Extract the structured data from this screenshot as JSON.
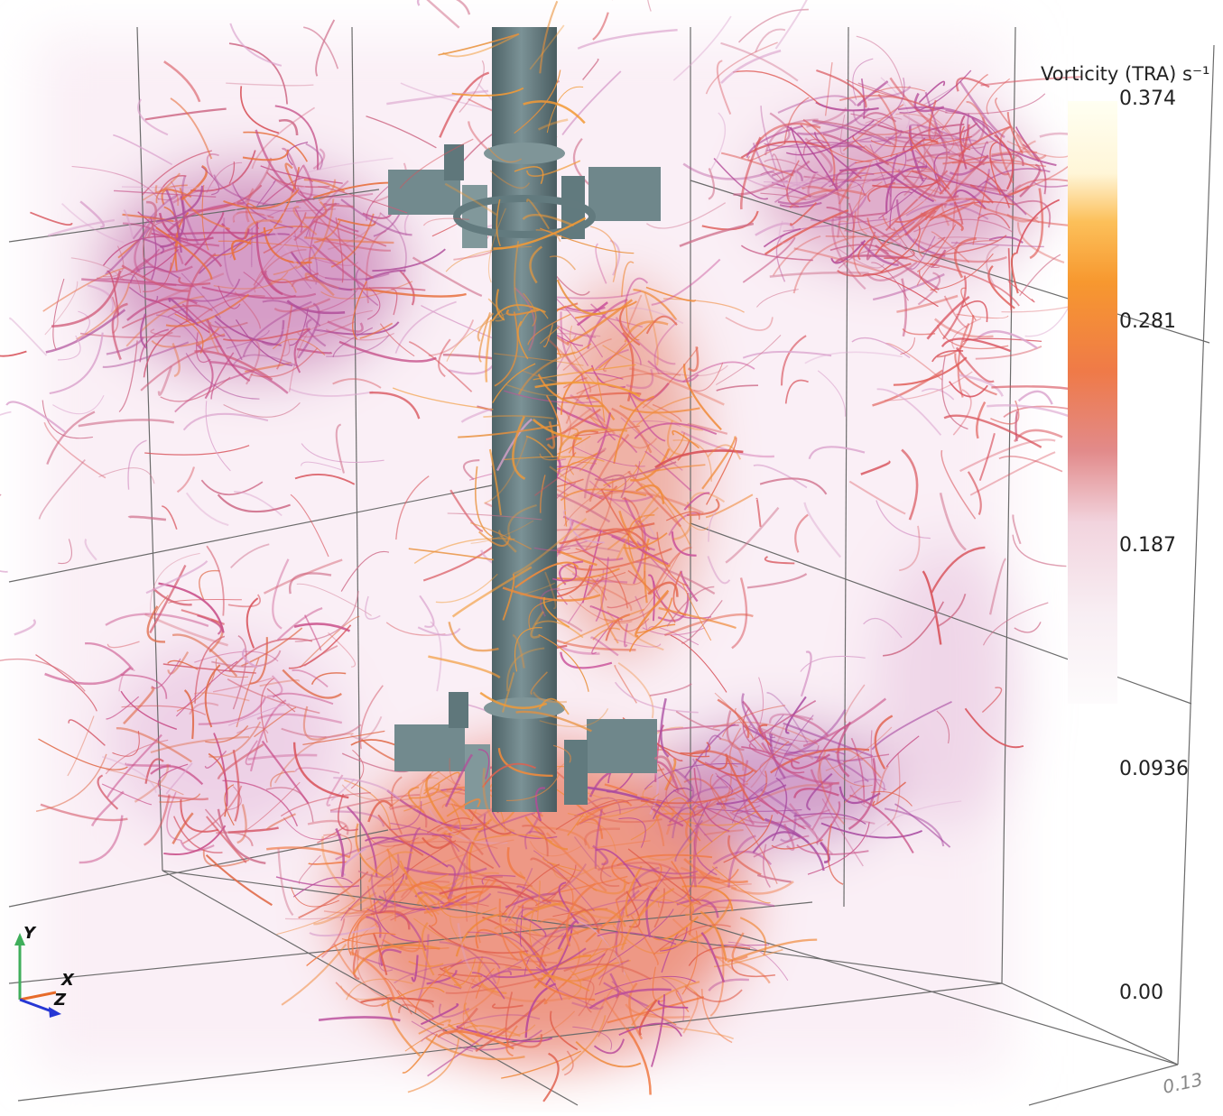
{
  "colorbar": {
    "title": "Vorticity (TRA) s⁻¹",
    "labels": [
      "0.374",
      "0.281",
      "0.187",
      "0.0936",
      "0.00"
    ]
  },
  "orientation_axes": {
    "y": "Y",
    "x": "X",
    "z": "Z"
  },
  "axis_annotation": "0.13"
}
